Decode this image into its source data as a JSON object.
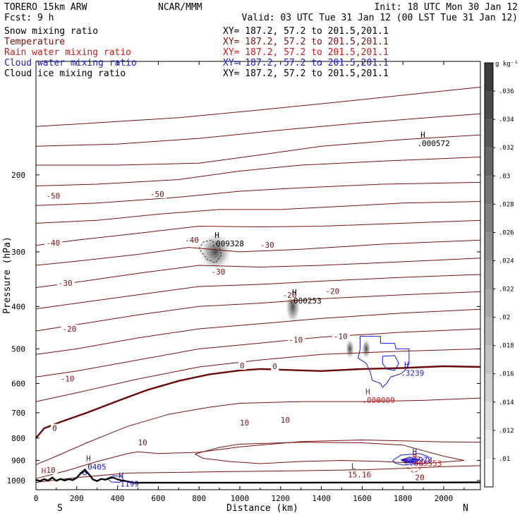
{
  "header": {
    "model": "TORERO   15km ARW",
    "center": "NCAR/MMM",
    "init": "Init: 18 UTC Mon 30 Jan 12",
    "fcst": "Fcst:     9 h",
    "valid": "Valid: 03 UTC Tue 31 Jan 12 (00 LST Tue 31 Jan 12)"
  },
  "fields": [
    {
      "label": "Snow mixing ratio",
      "xy": "XY= 187.2, 57.2 to 201.5,201.1",
      "color": "#000000"
    },
    {
      "label": "Temperature",
      "xy": "XY= 187.2, 57.2 to 201.5,201.1",
      "color": "#7a1010"
    },
    {
      "label": "Rain water mixing ratio",
      "xy": "XY= 187.2, 57.2 to 201.5,201.1",
      "color": "#cc1a1a"
    },
    {
      "label": "Cloud water mixing ratio",
      "xy": "XY= 187.2, 57.2 to 201.5,201.1",
      "color": "#1a1acc"
    },
    {
      "label": "Cloud ice mixing ratio",
      "xy": "XY= 187.2, 57.2 to 201.5,201.1",
      "color": "#000000"
    }
  ],
  "colors": {
    "temperature": "#7a1010",
    "freezing_level": "#6b0808",
    "rain": "#cc1a1a",
    "cloud_water": "#1a1acc",
    "terrain": "#000000",
    "shading_max": "#3c3c3c"
  },
  "chart_data": {
    "type": "contour",
    "xlabel": "Distance (km)",
    "ylabel": "Pressure (hPa)",
    "x_ticks": [
      0,
      200,
      400,
      600,
      800,
      1000,
      1200,
      1400,
      1600,
      1800,
      2000
    ],
    "y_ticks": [
      200,
      300,
      400,
      500,
      600,
      700,
      800,
      900,
      1000
    ],
    "xlim": [
      0,
      2180
    ],
    "ylim": [
      1050,
      110
    ],
    "y_scale": "log",
    "x_end_labels": {
      "left": "S",
      "right": "N"
    },
    "colorbar": {
      "unit": "g kg⁻¹",
      "ticks": [
        ".01",
        ".012",
        ".014",
        ".016",
        ".018",
        ".02",
        ".022",
        ".024",
        ".026",
        ".028",
        ".03",
        ".032",
        ".034",
        ".036"
      ]
    },
    "temperature_labels": [
      {
        "text": "-50",
        "x": 50,
        "y": 224
      },
      {
        "text": "-50",
        "x": 560,
        "y": 222
      },
      {
        "text": "-40",
        "x": 50,
        "y": 287
      },
      {
        "text": "-40",
        "x": 730,
        "y": 283
      },
      {
        "text": "-30",
        "x": 1100,
        "y": 290
      },
      {
        "text": "-30",
        "x": 110,
        "y": 355
      },
      {
        "text": "-30",
        "x": 860,
        "y": 334
      },
      {
        "text": "-20",
        "x": 1210,
        "y": 378
      },
      {
        "text": "-20",
        "x": 1420,
        "y": 370
      },
      {
        "text": "-20",
        "x": 130,
        "y": 452
      },
      {
        "text": "-10",
        "x": 1240,
        "y": 478
      },
      {
        "text": "-10",
        "x": 1460,
        "y": 470
      },
      {
        "text": "-10",
        "x": 120,
        "y": 587
      },
      {
        "text": "0",
        "x": 1000,
        "y": 548
      },
      {
        "text": "0",
        "x": 1160,
        "y": 550
      },
      {
        "text": "0",
        "x": 80,
        "y": 762
      },
      {
        "text": "10",
        "x": 1000,
        "y": 740
      },
      {
        "text": "10",
        "x": 1200,
        "y": 730
      },
      {
        "text": "10",
        "x": 500,
        "y": 822
      },
      {
        "text": "10",
        "x": 50,
        "y": 950
      },
      {
        "text": "20",
        "x": 1860,
        "y": 987
      }
    ],
    "extrema": [
      {
        "kind": "H",
        "value": ".000572",
        "x": 1870,
        "y": 168,
        "color": "#000000"
      },
      {
        "kind": "H",
        "value": ".009328",
        "x": 860,
        "y": 285,
        "color": "#000000"
      },
      {
        "kind": "H",
        "value": ".000253",
        "x": 1240,
        "y": 385,
        "color": "#000000"
      },
      {
        "kind": "H",
        "value": ".3239",
        "x": 1790,
        "y": 563,
        "color": "#1a1acc"
      },
      {
        "kind": "H",
        "value": ".000009",
        "x": 1600,
        "y": 650,
        "color": "#cc1a1a"
      },
      {
        "kind": "H",
        "value": ".5973",
        "x": 1830,
        "y": 890,
        "color": "#1a1acc"
      },
      {
        "kind": "H",
        "value": ".005553",
        "x": 1830,
        "y": 907,
        "color": "#cc1a1a"
      },
      {
        "kind": "H",
        "value": ".0405",
        "x": 230,
        "y": 923,
        "color": "#1a1acc"
      },
      {
        "kind": "H",
        "value": ".1199",
        "x": 390,
        "y": 1010,
        "color": "#1a1acc"
      },
      {
        "kind": "H",
        "value": "",
        "x": 10,
        "y": 985,
        "color": "#cc1a1a"
      },
      {
        "kind": "L",
        "value": "15.16",
        "x": 1530,
        "y": 962,
        "color": "#7a1010"
      }
    ],
    "terrain": {
      "x": [
        0,
        20,
        40,
        60,
        80,
        100,
        120,
        140,
        160,
        180,
        200,
        220,
        240,
        260,
        280,
        300,
        320,
        340,
        360,
        380,
        400,
        420,
        440,
        460,
        480,
        960,
        2180
      ],
      "p": [
        997,
        1003,
        993,
        1001,
        985,
        1002,
        992,
        1000,
        993,
        998,
        986,
        962,
        945,
        968,
        995,
        1003,
        992,
        996,
        988,
        985,
        994,
        1000,
        1003,
        1008,
        1012,
        1012,
        1010
      ]
    },
    "snow_max": [
      {
        "x": 880,
        "p": 300,
        "value": 0.009328
      },
      {
        "x": 1260,
        "p": 400,
        "value": 0.000253
      },
      {
        "x": 1540,
        "p": 500,
        "value": 0.000572
      },
      {
        "x": 1620,
        "p": 500,
        "value": 0.000572
      }
    ]
  }
}
